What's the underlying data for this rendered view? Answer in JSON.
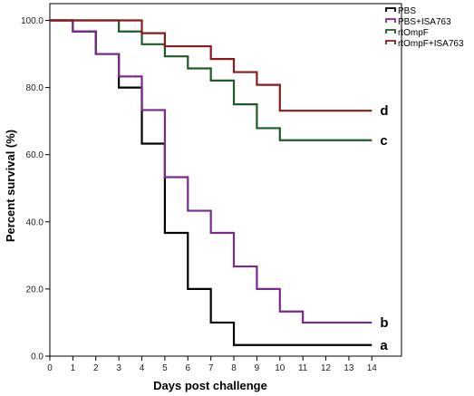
{
  "chart_data": {
    "type": "line",
    "step": true,
    "xlabel": "Days post challenge",
    "ylabel": "Percent survival (%)",
    "xlim": [
      0,
      14.6
    ],
    "ylim": [
      0,
      105
    ],
    "x_ticks": [
      "0",
      "1",
      "2",
      "3",
      "4",
      "5",
      "6",
      "7",
      "8",
      "9",
      "10",
      "11",
      "12",
      "13",
      "14"
    ],
    "y_ticks": [
      "0.0",
      "20.0",
      "40.0",
      "60.0",
      "80.0",
      "100.0"
    ],
    "legend_position": "top-right",
    "series": [
      {
        "name": "PBS",
        "color": "#000000",
        "label": "a",
        "points": [
          [
            0,
            100
          ],
          [
            1,
            96.7
          ],
          [
            2,
            90
          ],
          [
            3,
            80
          ],
          [
            4,
            63.3
          ],
          [
            5,
            36.7
          ],
          [
            6,
            20
          ],
          [
            7,
            10
          ],
          [
            8,
            3.3
          ],
          [
            14,
            3.3
          ]
        ]
      },
      {
        "name": "PBS+ISA763",
        "color": "#7a2a8c",
        "label": "b",
        "points": [
          [
            0,
            100
          ],
          [
            1,
            96.7
          ],
          [
            2,
            90
          ],
          [
            3,
            83.3
          ],
          [
            4,
            73.3
          ],
          [
            5,
            53.3
          ],
          [
            6,
            43.3
          ],
          [
            7,
            36.7
          ],
          [
            8,
            26.7
          ],
          [
            9,
            20
          ],
          [
            10,
            13.3
          ],
          [
            11,
            10
          ],
          [
            14,
            10
          ]
        ]
      },
      {
        "name": "rtOmpF",
        "color": "#1f5a2a",
        "label": "c",
        "points": [
          [
            0,
            100
          ],
          [
            3,
            96.7
          ],
          [
            4,
            92.9
          ],
          [
            5,
            89.3
          ],
          [
            6,
            85.7
          ],
          [
            7,
            82.1
          ],
          [
            8,
            75
          ],
          [
            9,
            67.9
          ],
          [
            10,
            64.3
          ],
          [
            14,
            64.3
          ]
        ]
      },
      {
        "name": "rtOmpF+ISA763",
        "color": "#8b1a1a",
        "label": "d",
        "points": [
          [
            0,
            100
          ],
          [
            4,
            96.2
          ],
          [
            5,
            92.3
          ],
          [
            7,
            88.5
          ],
          [
            8,
            84.6
          ],
          [
            9,
            80.8
          ],
          [
            10,
            73.1
          ],
          [
            14,
            73.1
          ]
        ]
      }
    ]
  }
}
